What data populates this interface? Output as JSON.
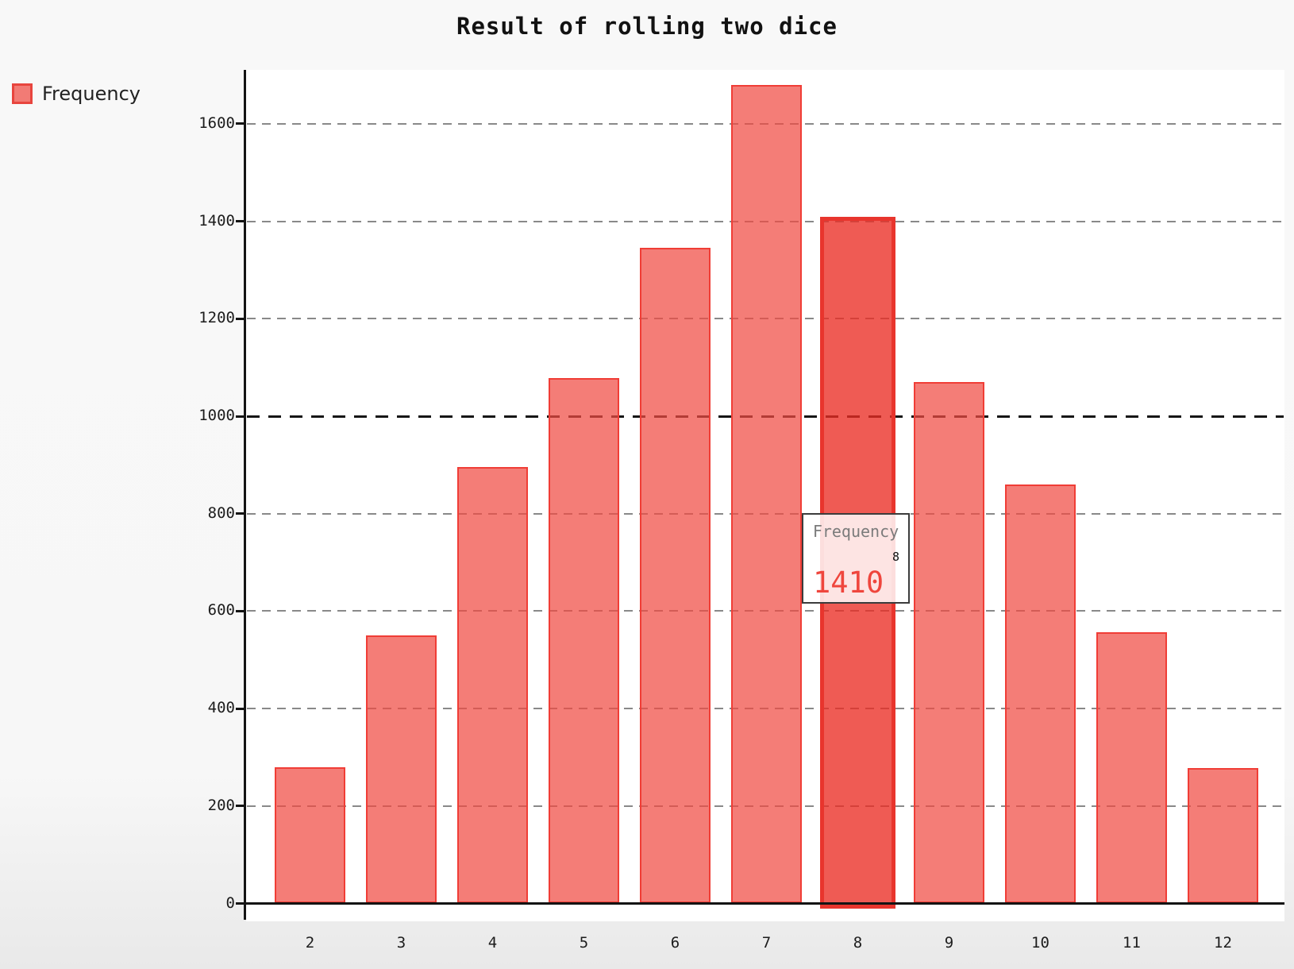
{
  "title": "Result of rolling two dice",
  "legend": {
    "label": "Frequency"
  },
  "tooltip": {
    "series_label": "Frequency",
    "category": "8",
    "value": "1410",
    "value_color": "#ef463d"
  },
  "colors": {
    "bar_fill": "#f5827b",
    "bar_border": "#f03d36",
    "highlight_fill": "#ef6059",
    "highlight_border": "#e8352d",
    "gridline": "#898989",
    "major_gridline": "#161616",
    "axis": "#141414",
    "background": "#f7f7f7",
    "plot_background": "#ffffff"
  },
  "chart_data": {
    "type": "bar",
    "title": "Result of rolling two dice",
    "xlabel": "",
    "ylabel": "",
    "categories": [
      "2",
      "3",
      "4",
      "5",
      "6",
      "7",
      "8",
      "9",
      "10",
      "11",
      "12"
    ],
    "series": [
      {
        "name": "Frequency",
        "values": [
          280,
          550,
          895,
          1078,
          1345,
          1680,
          1410,
          1070,
          860,
          557,
          278
        ]
      }
    ],
    "highlighted_category": "8",
    "highlighted_value": 1410,
    "yticks": [
      0,
      200,
      400,
      600,
      800,
      1000,
      1200,
      1400,
      1600
    ],
    "ylim": [
      0,
      1712
    ],
    "emphasized_gridline": 1000,
    "grid": "dashed-horizontal",
    "legend_position": "top-left"
  }
}
